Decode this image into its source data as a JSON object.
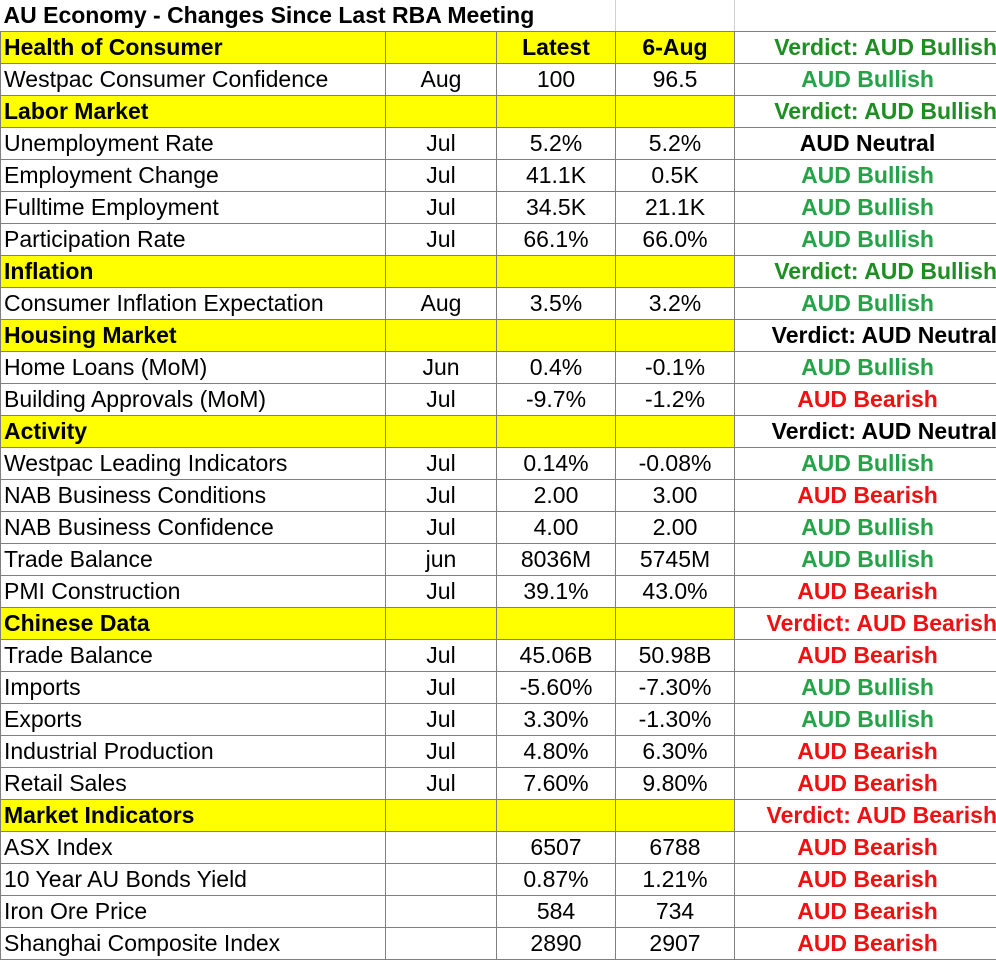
{
  "title": "AU Economy - Changes Since Last RBA Meeting",
  "columns": {
    "latest": "Latest",
    "previous": "6-Aug"
  },
  "rows": [
    {
      "type": "section",
      "label": "Health of Consumer",
      "latest": "Latest",
      "previous": "6-Aug",
      "verdict": "Verdict: AUD Bullish",
      "vclass": "vbull"
    },
    {
      "type": "data",
      "label": "Westpac Consumer Confidence",
      "period": "Aug",
      "latest": "100",
      "previous": "96.5",
      "signal": "AUD Bullish",
      "sclass": "bull"
    },
    {
      "type": "section",
      "label": "Labor Market",
      "latest": "",
      "previous": "",
      "verdict": "Verdict: AUD Bullish",
      "vclass": "vbull"
    },
    {
      "type": "data",
      "label": "Unemployment Rate",
      "period": "Jul",
      "latest": "5.2%",
      "previous": "5.2%",
      "signal": "AUD Neutral",
      "sclass": "neu"
    },
    {
      "type": "data",
      "label": "Employment Change",
      "period": "Jul",
      "latest": "41.1K",
      "previous": "0.5K",
      "signal": "AUD Bullish",
      "sclass": "bull"
    },
    {
      "type": "data",
      "label": "Fulltime Employment",
      "period": "Jul",
      "latest": "34.5K",
      "previous": "21.1K",
      "signal": "AUD Bullish",
      "sclass": "bull"
    },
    {
      "type": "data",
      "label": "Participation Rate",
      "period": "Jul",
      "latest": "66.1%",
      "previous": "66.0%",
      "signal": "AUD Bullish",
      "sclass": "bull"
    },
    {
      "type": "section",
      "label": "Inflation",
      "latest": "",
      "previous": "",
      "verdict": "Verdict: AUD Bullish",
      "vclass": "vbull"
    },
    {
      "type": "data",
      "label": "Consumer Inflation Expectation",
      "period": "Aug",
      "latest": "3.5%",
      "previous": "3.2%",
      "signal": "AUD Bullish",
      "sclass": "bull"
    },
    {
      "type": "section",
      "label": "Housing Market",
      "latest": "",
      "previous": "",
      "verdict": "Verdict: AUD Neutral",
      "vclass": "vneu"
    },
    {
      "type": "data",
      "label": "Home Loans (MoM)",
      "period": "Jun",
      "latest": "0.4%",
      "previous": "-0.1%",
      "signal": "AUD Bullish",
      "sclass": "bull"
    },
    {
      "type": "data",
      "label": "Building Approvals (MoM)",
      "period": "Jul",
      "latest": "-9.7%",
      "previous": "-1.2%",
      "signal": "AUD Bearish",
      "sclass": "bear"
    },
    {
      "type": "section",
      "label": "Activity",
      "latest": "",
      "previous": "",
      "verdict": "Verdict: AUD Neutral",
      "vclass": "vneu"
    },
    {
      "type": "data",
      "label": "Westpac Leading Indicators",
      "period": "Jul",
      "latest": "0.14%",
      "previous": "-0.08%",
      "signal": "AUD Bullish",
      "sclass": "bull"
    },
    {
      "type": "data",
      "label": "NAB Business Conditions",
      "period": "Jul",
      "latest": "2.00",
      "previous": "3.00",
      "signal": "AUD Bearish",
      "sclass": "bear"
    },
    {
      "type": "data",
      "label": "NAB Business Confidence",
      "period": "Jul",
      "latest": "4.00",
      "previous": "2.00",
      "signal": "AUD Bullish",
      "sclass": "bull"
    },
    {
      "type": "data",
      "label": "Trade Balance",
      "period": "jun",
      "latest": "8036M",
      "previous": "5745M",
      "signal": "AUD Bullish",
      "sclass": "bull"
    },
    {
      "type": "data",
      "label": "PMI Construction",
      "period": "Jul",
      "latest": "39.1%",
      "previous": "43.0%",
      "signal": "AUD Bearish",
      "sclass": "bear"
    },
    {
      "type": "section",
      "label": "Chinese Data",
      "latest": "",
      "previous": "",
      "verdict": "Verdict: AUD Bearish",
      "vclass": "vbear"
    },
    {
      "type": "data",
      "label": "Trade Balance",
      "period": "Jul",
      "latest": "45.06B",
      "previous": "50.98B",
      "signal": "AUD Bearish",
      "sclass": "bear"
    },
    {
      "type": "data",
      "label": "Imports",
      "period": "Jul",
      "latest": "-5.60%",
      "previous": "-7.30%",
      "signal": "AUD Bullish",
      "sclass": "bull"
    },
    {
      "type": "data",
      "label": "Exports",
      "period": "Jul",
      "latest": "3.30%",
      "previous": "-1.30%",
      "signal": "AUD Bullish",
      "sclass": "bull"
    },
    {
      "type": "data",
      "label": "Industrial Production",
      "period": "Jul",
      "latest": "4.80%",
      "previous": "6.30%",
      "signal": "AUD Bearish",
      "sclass": "bear"
    },
    {
      "type": "data",
      "label": "Retail Sales",
      "period": "Jul",
      "latest": "7.60%",
      "previous": "9.80%",
      "signal": "AUD Bearish",
      "sclass": "bear"
    },
    {
      "type": "section",
      "label": "Market Indicators",
      "latest": "",
      "previous": "",
      "verdict": "Verdict: AUD Bearish",
      "vclass": "vbear"
    },
    {
      "type": "data",
      "label": "ASX Index",
      "period": "",
      "latest": "6507",
      "previous": "6788",
      "signal": "AUD Bearish",
      "sclass": "bear"
    },
    {
      "type": "data",
      "label": "10 Year AU Bonds Yield",
      "period": "",
      "latest": "0.87%",
      "previous": "1.21%",
      "signal": "AUD Bearish",
      "sclass": "bear"
    },
    {
      "type": "data",
      "label": "Iron Ore Price",
      "period": "",
      "latest": "584",
      "previous": "734",
      "signal": "AUD Bearish",
      "sclass": "bear"
    },
    {
      "type": "data",
      "label": "Shanghai Composite Index",
      "period": "",
      "latest": "2890",
      "previous": "2907",
      "signal": "AUD Bearish",
      "sclass": "bear"
    }
  ]
}
